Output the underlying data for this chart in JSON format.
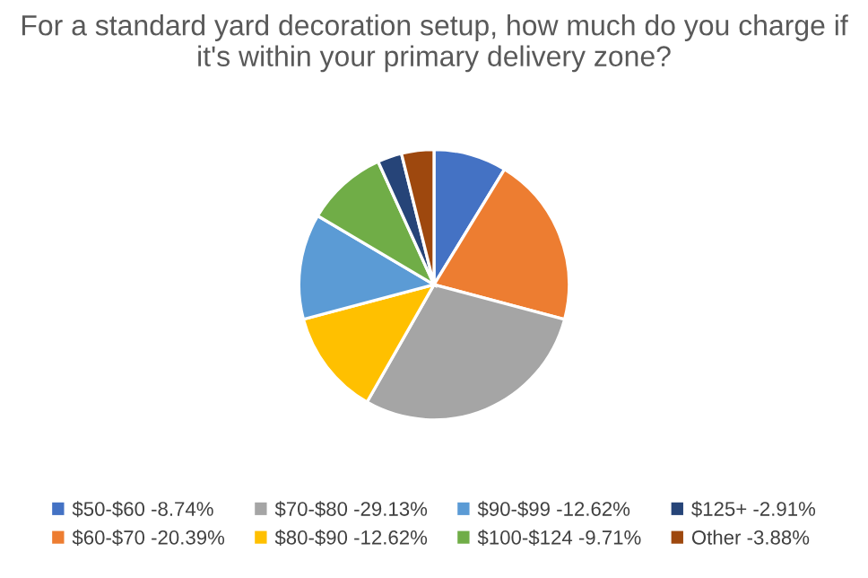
{
  "chart_data": {
    "type": "pie",
    "title": "For a standard yard decoration setup, how much do you charge if it's within your primary delivery zone?",
    "categories": [
      "$50-$60 -8.74%",
      "$60-$70 -20.39%",
      "$70-$80 -29.13%",
      "$80-$90 -12.62%",
      "$90-$99 -12.62%",
      "$100-$124 -9.71%",
      "$125+ -2.91%",
      "Other -3.88%"
    ],
    "values": [
      8.74,
      20.39,
      29.13,
      12.62,
      12.62,
      9.71,
      2.91,
      3.88
    ],
    "colors": [
      "#4472c4",
      "#ed7d31",
      "#a5a5a5",
      "#ffc000",
      "#5b9bd5",
      "#70ad47",
      "#264478",
      "#9e480e"
    ],
    "legend": "bottom"
  }
}
